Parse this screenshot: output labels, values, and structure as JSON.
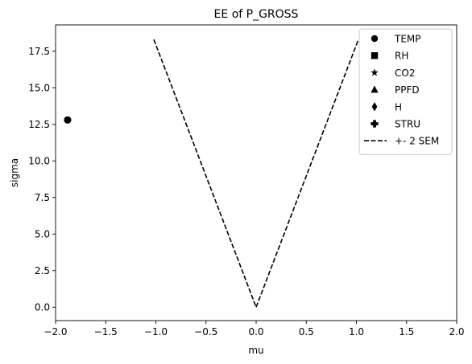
{
  "chart_data": {
    "type": "scatter",
    "title": "EE of P_GROSS",
    "xlabel": "mu",
    "ylabel": "sigma",
    "xlim": [
      -2.0,
      2.0
    ],
    "ylim": [
      -0.92,
      19.3
    ],
    "xticks": [
      -2.0,
      -1.5,
      -1.0,
      -0.5,
      0.0,
      0.5,
      1.0,
      1.5,
      2.0
    ],
    "xtick_labels": [
      "−2.0",
      "−1.5",
      "−1.0",
      "−0.5",
      "0.0",
      "0.5",
      "1.0",
      "1.5",
      "2.0"
    ],
    "yticks": [
      0.0,
      2.5,
      5.0,
      7.5,
      10.0,
      12.5,
      15.0,
      17.5
    ],
    "ytick_labels": [
      "0.0",
      "2.5",
      "5.0",
      "7.5",
      "10.0",
      "12.5",
      "15.0",
      "17.5"
    ],
    "grid": false,
    "legend_position": "top-right",
    "series": [
      {
        "name": "TEMP",
        "marker": "circle",
        "color": "#000000",
        "points": [
          [
            -1.88,
            12.8
          ]
        ]
      },
      {
        "name": "RH",
        "marker": "square",
        "color": "#000000",
        "points": []
      },
      {
        "name": "CO2",
        "marker": "star",
        "color": "#000000",
        "points": []
      },
      {
        "name": "PPFD",
        "marker": "triangle",
        "color": "#000000",
        "points": []
      },
      {
        "name": "H",
        "marker": "diamond",
        "color": "#000000",
        "points": []
      },
      {
        "name": "STRU",
        "marker": "plus",
        "color": "#000000",
        "points": []
      }
    ],
    "sem_line": {
      "name": "+- 2 SEM",
      "style": "dashed",
      "color": "#000000",
      "left": [
        [
          -1.02,
          18.3
        ],
        [
          0.0,
          0.0
        ]
      ],
      "right": [
        [
          0.0,
          0.0
        ],
        [
          1.02,
          18.3
        ]
      ]
    }
  }
}
